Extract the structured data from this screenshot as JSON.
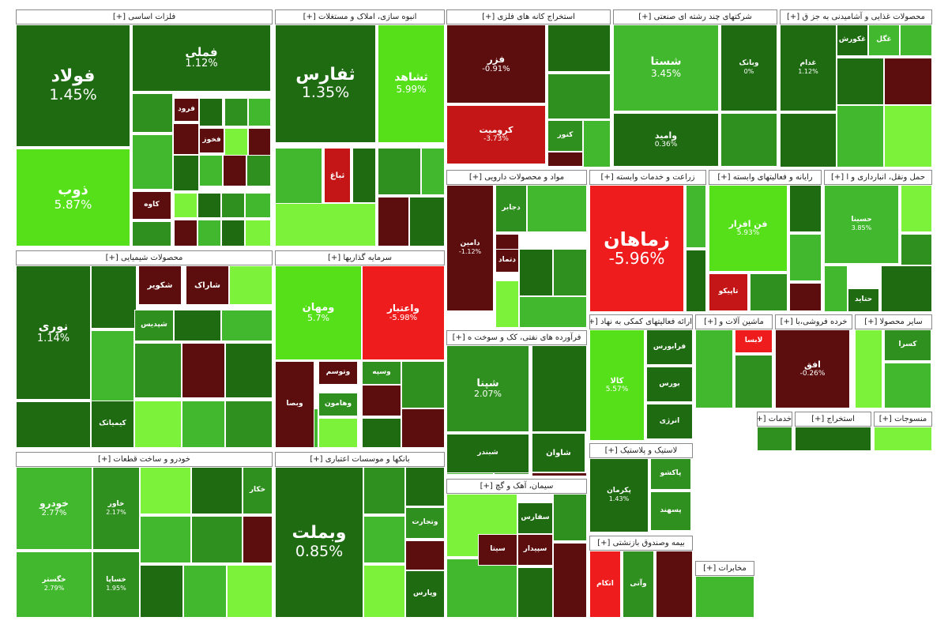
{
  "palette": {
    "strong_green": "#1f6b12",
    "green": "#2f8f1f",
    "bright_green": "#41b82d",
    "lime": "#55e01a",
    "light_green": "#7cf23a",
    "dark_red": "#5c0d0d",
    "red": "#c41616",
    "bright_red": "#ee1c1c"
  },
  "chart_data": {
    "type": "treemap",
    "sectors": [
      {
        "id": "s1",
        "label": "فلزات اساسی [+]",
        "tiles": [
          {
            "name": "فولاد",
            "value": "1.45%",
            "change": 1.45
          },
          {
            "name": "فملی",
            "value": "1.12%",
            "change": 1.12
          },
          {
            "name": "ذوب",
            "value": "5.87%",
            "change": 5.87
          },
          {
            "name": "فرود",
            "value": "",
            "change": -2
          },
          {
            "name": "کاوه",
            "value": "",
            "change": -2
          },
          {
            "name": "فخوز",
            "value": "",
            "change": -2
          }
        ]
      },
      {
        "id": "s2",
        "label": "انبوه سازی، املاک و مستغلات [+]",
        "tiles": [
          {
            "name": "ثفارس",
            "value": "1.35%",
            "change": 1.35
          },
          {
            "name": "ثشاهد",
            "value": "5.99%",
            "change": 5.99
          },
          {
            "name": "ثباغ",
            "value": "",
            "change": -3
          }
        ]
      },
      {
        "id": "s3",
        "label": "استخراج کانه های فلزی [+]",
        "tiles": [
          {
            "name": "فزر",
            "value": "-0.91%",
            "change": -0.91
          },
          {
            "name": "کرومیت",
            "value": "-3.73%",
            "change": -3.73
          },
          {
            "name": "کنور",
            "value": "",
            "change": 2
          }
        ]
      },
      {
        "id": "s4",
        "label": "شرکتهای چند رشته ای صنعتی [+]",
        "tiles": [
          {
            "name": "شستا",
            "value": "3.45%",
            "change": 3.45
          },
          {
            "name": "وبانک",
            "value": "0%",
            "change": 0
          },
          {
            "name": "وامید",
            "value": "0.36%",
            "change": 0.36
          }
        ]
      },
      {
        "id": "s5",
        "label": "محصولات غذایی و آشامیدنی به جز ق [+]",
        "tiles": [
          {
            "name": "غدام",
            "value": "1.12%",
            "change": 1.12
          },
          {
            "name": "غکورش",
            "value": "",
            "change": 1
          },
          {
            "name": "غگل",
            "value": "",
            "change": 3
          }
        ]
      },
      {
        "id": "s6",
        "label": "مواد و محصولات دارویی [+]",
        "tiles": [
          {
            "name": "دامین",
            "value": "-1.12%",
            "change": -1.12
          },
          {
            "name": "دجابر",
            "value": "",
            "change": 2
          },
          {
            "name": "دتماد",
            "value": "",
            "change": -2
          }
        ]
      },
      {
        "id": "s7",
        "label": "زراعت و خدمات وابسته [+]",
        "tiles": [
          {
            "name": "زماهان",
            "value": "-5.96%",
            "change": -5.96
          }
        ]
      },
      {
        "id": "s8",
        "label": "رایانه و فعالیتهای وابسته [+]",
        "tiles": [
          {
            "name": "فن افزار",
            "value": "5.93%",
            "change": 5.93
          },
          {
            "name": "تاپیکو",
            "value": "",
            "change": -3
          }
        ]
      },
      {
        "id": "s9",
        "label": "حمل ونقل، انبارداری و ا [+]",
        "tiles": [
          {
            "name": "حسینا",
            "value": "3.85%",
            "change": 3.85
          },
          {
            "name": "حتاید",
            "value": "",
            "change": 1
          }
        ]
      },
      {
        "id": "s10",
        "label": "محصولات شیمیایی [+]",
        "tiles": [
          {
            "name": "نوری",
            "value": "1.14%",
            "change": 1.14
          },
          {
            "name": "شکویر",
            "value": "",
            "change": -2
          },
          {
            "name": "شاراک",
            "value": "",
            "change": -2
          },
          {
            "name": "شپدیس",
            "value": "",
            "change": 2
          },
          {
            "name": "کیمیاتک",
            "value": "",
            "change": 1
          }
        ]
      },
      {
        "id": "s11",
        "label": "سرمایه گذاریها [+]",
        "tiles": [
          {
            "name": "ومهان",
            "value": "5.7%",
            "change": 5.7
          },
          {
            "name": "واعتبار",
            "value": "-5.98%",
            "change": -5.98
          },
          {
            "name": "وبصا",
            "value": "",
            "change": -2
          },
          {
            "name": "وتوسم",
            "value": "",
            "change": -2
          },
          {
            "name": "وسپه",
            "value": "",
            "change": 2
          },
          {
            "name": "وهامون",
            "value": "",
            "change": 2
          }
        ]
      },
      {
        "id": "s12",
        "label": "فرآورده های نفتی، کک و سوخت ه [+]",
        "tiles": [
          {
            "name": "شپنا",
            "value": "2.07%",
            "change": 2.07
          },
          {
            "name": "شاوان",
            "value": "",
            "change": 1
          },
          {
            "name": "شبندر",
            "value": "",
            "change": 1
          }
        ]
      },
      {
        "id": "s13",
        "label": "ارائه فعالیتهای کمکی به نهاد [+]",
        "tiles": [
          {
            "name": "کالا",
            "value": "5.57%",
            "change": 5.57
          },
          {
            "name": "فرابورس",
            "value": "",
            "change": 1
          },
          {
            "name": "بورس",
            "value": "",
            "change": 1
          },
          {
            "name": "انرژی",
            "value": "",
            "change": 1
          }
        ]
      },
      {
        "id": "s14",
        "label": "ماشین آلات و [+]",
        "tiles": [
          {
            "name": "لابسا",
            "value": "",
            "change": -5
          }
        ]
      },
      {
        "id": "s15",
        "label": "خرده فروشی،با [+]",
        "tiles": [
          {
            "name": "افق",
            "value": "-0.26%",
            "change": -0.26
          }
        ]
      },
      {
        "id": "s16",
        "label": "سایر محصولا [+]",
        "tiles": [
          {
            "name": "کسرا",
            "value": "",
            "change": 2
          }
        ]
      },
      {
        "id": "s17",
        "label": "خودرو و ساخت قطعات [+]",
        "tiles": [
          {
            "name": "خودرو",
            "value": "2.77%",
            "change": 2.77
          },
          {
            "name": "خگستر",
            "value": "2.79%",
            "change": 2.79
          },
          {
            "name": "خاور",
            "value": "2.17%",
            "change": 2.17
          },
          {
            "name": "خساپا",
            "value": "1.95%",
            "change": 1.95
          },
          {
            "name": "خکار",
            "value": "",
            "change": 2
          }
        ]
      },
      {
        "id": "s18",
        "label": "بانکها و موسسات اعتباری [+]",
        "tiles": [
          {
            "name": "وبملت",
            "value": "0.85%",
            "change": 0.85
          },
          {
            "name": "وپارس",
            "value": "",
            "change": 1
          },
          {
            "name": "وتجارت",
            "value": "",
            "change": 2
          }
        ]
      },
      {
        "id": "s19",
        "label": "سیمان، آهک و گچ [+]",
        "tiles": [
          {
            "name": "سفارس",
            "value": "",
            "change": 1
          },
          {
            "name": "سیتا",
            "value": "",
            "change": -2
          },
          {
            "name": "سپیدار",
            "value": "",
            "change": -2
          }
        ]
      },
      {
        "id": "s20",
        "label": "لاستیک و پلاستیک [+]",
        "tiles": [
          {
            "name": "پکرمان",
            "value": "1.43%",
            "change": 1.43
          },
          {
            "name": "پاکشو",
            "value": "",
            "change": 2
          },
          {
            "name": "پسهند",
            "value": "",
            "change": 2
          }
        ]
      },
      {
        "id": "s21",
        "label": "بیمه وصندوق بازنشتی [+]",
        "tiles": [
          {
            "name": "اتکام",
            "value": "",
            "change": -5
          },
          {
            "name": "وآتی",
            "value": "",
            "change": 2
          }
        ]
      },
      {
        "id": "s22",
        "label": "استخراج [+]",
        "tiles": []
      },
      {
        "id": "s23",
        "label": "خدمات [+]",
        "tiles": []
      },
      {
        "id": "s24",
        "label": "منسوجات [+]",
        "tiles": []
      },
      {
        "id": "s25",
        "label": "مخابرات [+]",
        "tiles": []
      }
    ]
  }
}
